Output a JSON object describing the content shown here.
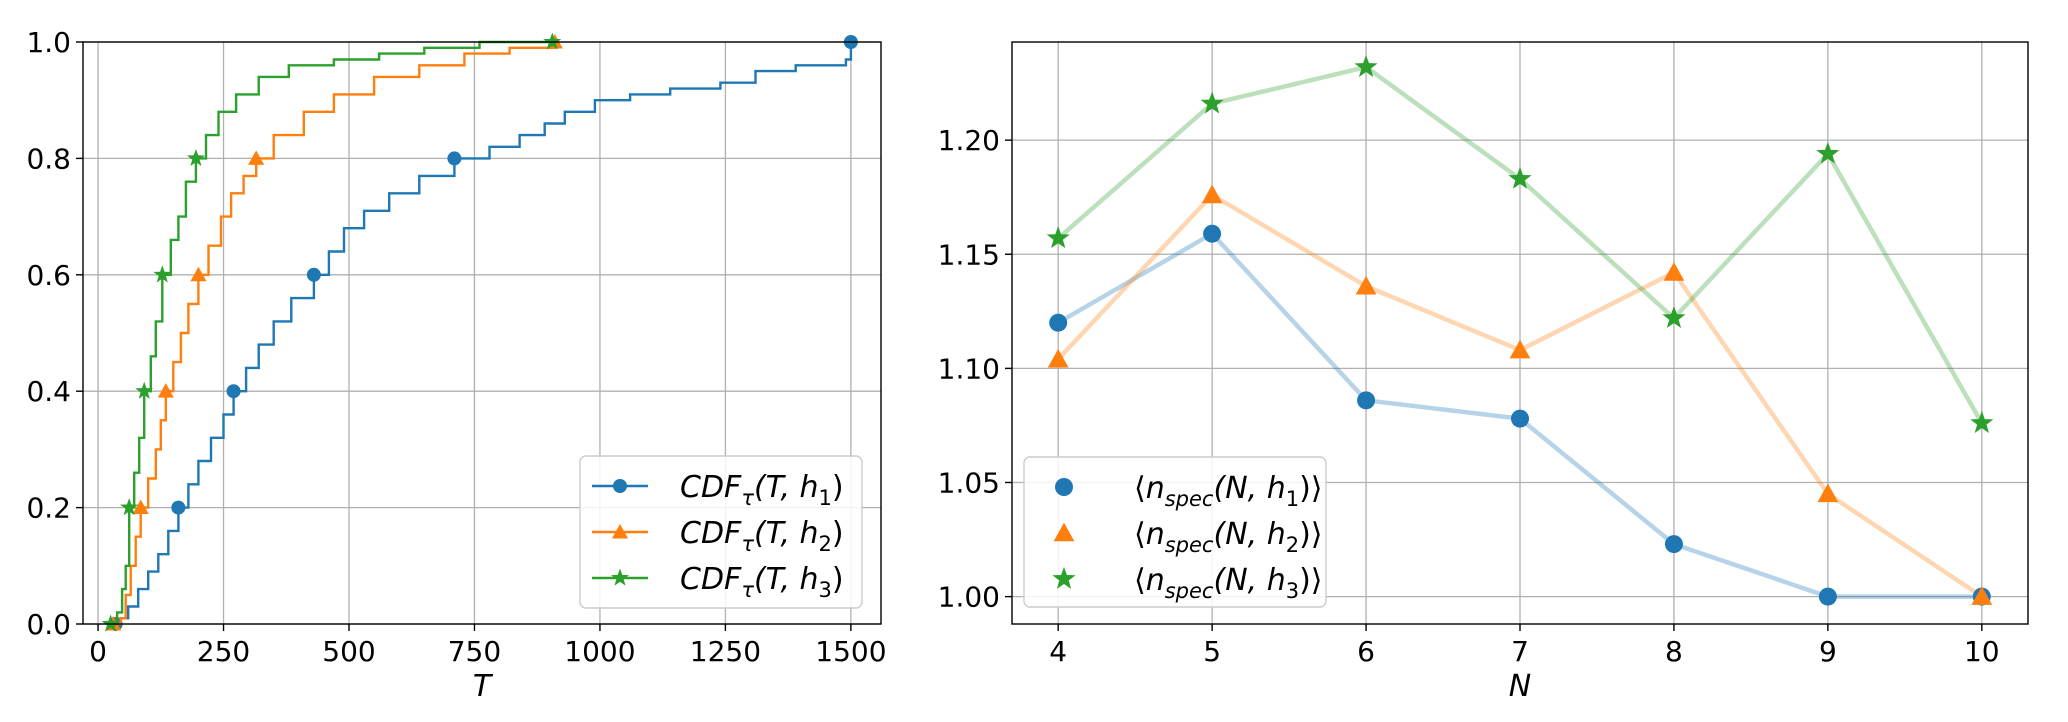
{
  "chart_data": [
    {
      "type": "line",
      "subtype": "step-cdf",
      "xlabel": "T",
      "ylabel": "",
      "xlim": [
        -30,
        1560
      ],
      "ylim": [
        0,
        1.0
      ],
      "xticks": [
        0,
        250,
        500,
        750,
        1000,
        1250,
        1500
      ],
      "yticks": [
        0.0,
        0.2,
        0.4,
        0.6,
        0.8,
        1.0
      ],
      "xtick_labels": [
        "0",
        "250",
        "500",
        "750",
        "1000",
        "1250",
        "1500"
      ],
      "ytick_labels": [
        "0.0",
        "0.2",
        "0.4",
        "0.6",
        "0.8",
        "1.0"
      ],
      "grid": true,
      "legend_position": "lower-right",
      "series": [
        {
          "name": "h1",
          "legend": "CDF_τ(T, h_1)",
          "legend_main": "CDF",
          "legend_sub": "τ",
          "legend_args": "(T, h",
          "legend_idx": "1",
          "legend_close": ")",
          "color": "#1f77b4",
          "marker": "circle",
          "curve": [
            [
              35,
              0
            ],
            [
              45,
              0.01
            ],
            [
              60,
              0.03
            ],
            [
              80,
              0.06
            ],
            [
              100,
              0.09
            ],
            [
              120,
              0.12
            ],
            [
              140,
              0.16
            ],
            [
              160,
              0.2
            ],
            [
              180,
              0.24
            ],
            [
              200,
              0.28
            ],
            [
              225,
              0.32
            ],
            [
              250,
              0.36
            ],
            [
              270,
              0.4
            ],
            [
              295,
              0.44
            ],
            [
              320,
              0.48
            ],
            [
              350,
              0.52
            ],
            [
              385,
              0.56
            ],
            [
              430,
              0.6
            ],
            [
              460,
              0.64
            ],
            [
              490,
              0.68
            ],
            [
              530,
              0.71
            ],
            [
              580,
              0.74
            ],
            [
              640,
              0.77
            ],
            [
              710,
              0.8
            ],
            [
              780,
              0.82
            ],
            [
              840,
              0.84
            ],
            [
              890,
              0.86
            ],
            [
              930,
              0.88
            ],
            [
              990,
              0.9
            ],
            [
              1060,
              0.91
            ],
            [
              1140,
              0.92
            ],
            [
              1240,
              0.93
            ],
            [
              1310,
              0.95
            ],
            [
              1390,
              0.96
            ],
            [
              1490,
              0.97
            ],
            [
              1500,
              1.0
            ]
          ],
          "markers": [
            [
              35,
              0
            ],
            [
              160,
              0.2
            ],
            [
              270,
              0.4
            ],
            [
              430,
              0.6
            ],
            [
              710,
              0.8
            ],
            [
              1500,
              1.0
            ]
          ]
        },
        {
          "name": "h2",
          "legend": "CDF_τ(T, h_2)",
          "legend_main": "CDF",
          "legend_sub": "τ",
          "legend_args": "(T, h",
          "legend_idx": "2",
          "legend_close": ")",
          "color": "#ff7f0e",
          "marker": "triangle",
          "curve": [
            [
              30,
              0
            ],
            [
              45,
              0.01
            ],
            [
              55,
              0.05
            ],
            [
              65,
              0.1
            ],
            [
              75,
              0.15
            ],
            [
              85,
              0.2
            ],
            [
              100,
              0.25
            ],
            [
              115,
              0.3
            ],
            [
              125,
              0.35
            ],
            [
              135,
              0.4
            ],
            [
              150,
              0.45
            ],
            [
              165,
              0.5
            ],
            [
              180,
              0.55
            ],
            [
              200,
              0.6
            ],
            [
              220,
              0.65
            ],
            [
              245,
              0.7
            ],
            [
              265,
              0.74
            ],
            [
              290,
              0.77
            ],
            [
              315,
              0.8
            ],
            [
              350,
              0.84
            ],
            [
              410,
              0.88
            ],
            [
              470,
              0.91
            ],
            [
              550,
              0.94
            ],
            [
              640,
              0.96
            ],
            [
              730,
              0.98
            ],
            [
              820,
              0.99
            ],
            [
              910,
              1.0
            ]
          ],
          "markers": [
            [
              30,
              0
            ],
            [
              85,
              0.2
            ],
            [
              135,
              0.4
            ],
            [
              200,
              0.6
            ],
            [
              315,
              0.8
            ],
            [
              910,
              1.0
            ]
          ]
        },
        {
          "name": "h3",
          "legend": "CDF_τ(T, h_3)",
          "legend_main": "CDF",
          "legend_sub": "τ",
          "legend_args": "(T, h",
          "legend_idx": "3",
          "legend_close": ")",
          "color": "#2ca02c",
          "marker": "star",
          "curve": [
            [
              25,
              0
            ],
            [
              38,
              0.02
            ],
            [
              48,
              0.06
            ],
            [
              55,
              0.1
            ],
            [
              62,
              0.2
            ],
            [
              72,
              0.26
            ],
            [
              82,
              0.32
            ],
            [
              92,
              0.4
            ],
            [
              105,
              0.46
            ],
            [
              115,
              0.52
            ],
            [
              128,
              0.6
            ],
            [
              145,
              0.66
            ],
            [
              160,
              0.7
            ],
            [
              175,
              0.76
            ],
            [
              195,
              0.8
            ],
            [
              215,
              0.84
            ],
            [
              240,
              0.88
            ],
            [
              275,
              0.91
            ],
            [
              320,
              0.94
            ],
            [
              380,
              0.96
            ],
            [
              470,
              0.97
            ],
            [
              560,
              0.98
            ],
            [
              650,
              0.99
            ],
            [
              760,
              1.0
            ],
            [
              905,
              1.0
            ]
          ],
          "markers": [
            [
              25,
              0
            ],
            [
              62,
              0.2
            ],
            [
              92,
              0.4
            ],
            [
              128,
              0.6
            ],
            [
              195,
              0.8
            ],
            [
              905,
              1.0
            ]
          ]
        }
      ]
    },
    {
      "type": "line",
      "xlabel": "N",
      "ylabel": "",
      "xlim": [
        3.7,
        10.3
      ],
      "ylim": [
        0.988,
        1.243
      ],
      "xticks": [
        4,
        5,
        6,
        7,
        8,
        9,
        10
      ],
      "yticks": [
        1.0,
        1.05,
        1.1,
        1.15,
        1.2
      ],
      "xtick_labels": [
        "4",
        "5",
        "6",
        "7",
        "8",
        "9",
        "10"
      ],
      "ytick_labels": [
        "1.00",
        "1.05",
        "1.10",
        "1.15",
        "1.20"
      ],
      "grid": true,
      "legend_position": "lower-left",
      "categories": [
        4,
        5,
        6,
        7,
        8,
        9,
        10
      ],
      "series": [
        {
          "name": "h1",
          "legend": "⟨n_spec(N, h_1)⟩",
          "legend_open": "⟨",
          "legend_main": "n",
          "legend_sub": "spec",
          "legend_args": "(N, h",
          "legend_idx": "1",
          "legend_close": ")⟩",
          "color": "#1f77b4",
          "marker": "circle",
          "values": [
            1.12,
            1.159,
            1.086,
            1.078,
            1.023,
            1.0,
            1.0
          ]
        },
        {
          "name": "h2",
          "legend": "⟨n_spec(N, h_2)⟩",
          "legend_open": "⟨",
          "legend_main": "n",
          "legend_sub": "spec",
          "legend_args": "(N, h",
          "legend_idx": "2",
          "legend_close": ")⟩",
          "color": "#ff7f0e",
          "marker": "triangle",
          "values": [
            1.104,
            1.176,
            1.136,
            1.108,
            1.142,
            1.045,
            1.0
          ]
        },
        {
          "name": "h3",
          "legend": "⟨n_spec(N, h_3)⟩",
          "legend_open": "⟨",
          "legend_main": "n",
          "legend_sub": "spec",
          "legend_args": "(N, h",
          "legend_idx": "3",
          "legend_close": ")⟩",
          "color": "#2ca02c",
          "marker": "star",
          "values": [
            1.157,
            1.216,
            1.232,
            1.183,
            1.122,
            1.194,
            1.076
          ]
        }
      ]
    }
  ]
}
